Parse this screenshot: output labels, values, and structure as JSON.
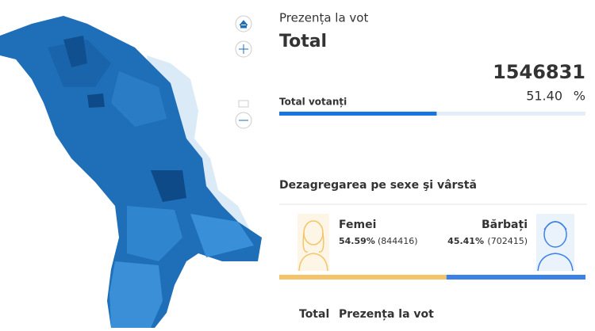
{
  "header": {
    "title": "Prezența la vot",
    "subtitle": "Total"
  },
  "total": {
    "voters": 1546831,
    "label": "Total votanți",
    "turnout": {
      "value": 51.4,
      "label": "51.40"
    },
    "unit": "%"
  },
  "gender": {
    "title": "Dezagregarea pe sexe şi vârstă",
    "female": {
      "name": "Femei",
      "percent": {
        "value": 54.59,
        "label": "54.59%"
      },
      "count": {
        "value": 844416,
        "label": "(844416)"
      },
      "color": "#f5c469"
    },
    "male": {
      "name": "Bărbați",
      "percent": {
        "value": 45.41,
        "label": "45.41%"
      },
      "count": {
        "value": 702415,
        "label": "(702415)"
      },
      "color": "#3b82e6"
    }
  },
  "table_header": {
    "col1": "Total",
    "col2": "Prezența la vot"
  }
}
